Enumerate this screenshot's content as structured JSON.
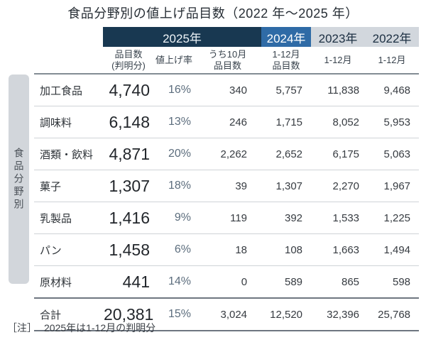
{
  "title": "食品分野別の値上げ品目数（2022 年～2025 年）",
  "sidebar": {
    "label": "食品分野別"
  },
  "colors": {
    "navy_band": "#183851",
    "blue_band": "#2f6ba6",
    "gray_band": "#d2d7dd",
    "percent_text": "#5c6d7d",
    "rule_dark": "#6e7680",
    "rule_light": "#cfd3d7"
  },
  "table": {
    "year_headers": [
      {
        "label": "2025年"
      },
      {
        "label": "2024年"
      },
      {
        "label": "2023年"
      },
      {
        "label": "2022年"
      }
    ],
    "sub_headers": [
      {
        "line1": "品目数",
        "line2": "(判明分)"
      },
      {
        "line1": "値上げ率",
        "line2": ""
      },
      {
        "line1": "うち10月",
        "line2": "品目数"
      },
      {
        "line1": "1-12月",
        "line2": "品目数"
      },
      {
        "line1": "1-12月",
        "line2": ""
      },
      {
        "line1": "1-12月",
        "line2": ""
      }
    ],
    "rows": [
      {
        "category": "加工食品",
        "values": [
          "4,740",
          "16%",
          "340",
          "5,757",
          "11,838",
          "9,468"
        ]
      },
      {
        "category": "調味料",
        "values": [
          "6,148",
          "13%",
          "246",
          "1,715",
          "8,052",
          "5,953"
        ]
      },
      {
        "category": "酒類・飲料",
        "values": [
          "4,871",
          "20%",
          "2,262",
          "2,652",
          "6,175",
          "5,063"
        ]
      },
      {
        "category": "菓子",
        "values": [
          "1,307",
          "18%",
          "39",
          "1,307",
          "2,270",
          "1,967"
        ]
      },
      {
        "category": "乳製品",
        "values": [
          "1,416",
          "9%",
          "119",
          "392",
          "1,533",
          "1,225"
        ]
      },
      {
        "category": "パン",
        "values": [
          "1,458",
          "6%",
          "18",
          "108",
          "1,663",
          "1,494"
        ]
      },
      {
        "category": "原材料",
        "values": [
          "441",
          "14%",
          "0",
          "589",
          "865",
          "598"
        ]
      }
    ],
    "total_row": {
      "category": "合計",
      "values": [
        "20,381",
        "15%",
        "3,024",
        "12,520",
        "32,396",
        "25,768"
      ]
    }
  },
  "footnote": {
    "prefix": "［注］",
    "text": "2025年は1-12月の判明分"
  },
  "chart_data": {
    "type": "table",
    "title": "食品分野別の値上げ品目数（2022年～2025年）",
    "row_axis_label": "食品分野別",
    "columns": [
      "2025年 品目数(判明分)",
      "2025年 値上げ率",
      "2025年 うち10月品目数",
      "2024年 1-12月品目数",
      "2023年 1-12月",
      "2022年 1-12月"
    ],
    "rows": [
      {
        "category": "加工食品",
        "values": [
          4740,
          "16%",
          340,
          5757,
          11838,
          9468
        ]
      },
      {
        "category": "調味料",
        "values": [
          6148,
          "13%",
          246,
          1715,
          8052,
          5953
        ]
      },
      {
        "category": "酒類・飲料",
        "values": [
          4871,
          "20%",
          2262,
          2652,
          6175,
          5063
        ]
      },
      {
        "category": "菓子",
        "values": [
          1307,
          "18%",
          39,
          1307,
          2270,
          1967
        ]
      },
      {
        "category": "乳製品",
        "values": [
          1416,
          "9%",
          119,
          392,
          1533,
          1225
        ]
      },
      {
        "category": "パン",
        "values": [
          1458,
          "6%",
          18,
          108,
          1663,
          1494
        ]
      },
      {
        "category": "原材料",
        "values": [
          441,
          "14%",
          0,
          589,
          865,
          598
        ]
      },
      {
        "category": "合計",
        "values": [
          20381,
          "15%",
          3024,
          12520,
          32396,
          25768
        ]
      }
    ],
    "note": "2025年は1-12月の判明分"
  }
}
